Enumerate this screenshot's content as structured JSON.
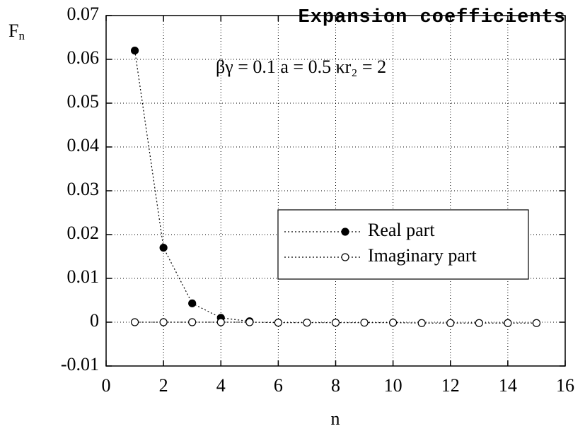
{
  "chart_data": {
    "type": "line",
    "title": "Expansion coefficients",
    "y_label": {
      "main": "F",
      "sub": "n"
    },
    "x_label": "n",
    "annotation": "βγ = 0.1   a = 0.5   κr₂ = 2",
    "x": [
      1,
      2,
      3,
      4,
      5,
      6,
      7,
      8,
      9,
      10,
      11,
      12,
      13,
      14,
      15
    ],
    "series": [
      {
        "name": "Real part",
        "color": "#000000",
        "marker": "filled",
        "values": [
          0.062,
          0.017,
          0.0043,
          0.001,
          0.0002,
          null,
          null,
          null,
          null,
          null,
          null,
          null,
          null,
          null,
          null
        ]
      },
      {
        "name": "Imaginary part",
        "color": "#000000",
        "marker": "open",
        "values": [
          0,
          0,
          0,
          0,
          0,
          -0.0001,
          -0.0001,
          -0.0001,
          -0.0001,
          -0.0001,
          -0.0002,
          -0.0002,
          -0.0002,
          -0.0002,
          -0.0002
        ]
      }
    ],
    "xlim": [
      0,
      16
    ],
    "xticks": [
      0,
      2,
      4,
      6,
      8,
      10,
      12,
      14,
      16
    ],
    "ylim": [
      -0.01,
      0.07
    ],
    "yticks": [
      -0.01,
      0,
      0.01,
      0.02,
      0.03,
      0.04,
      0.05,
      0.06,
      0.07
    ],
    "grid": true
  }
}
